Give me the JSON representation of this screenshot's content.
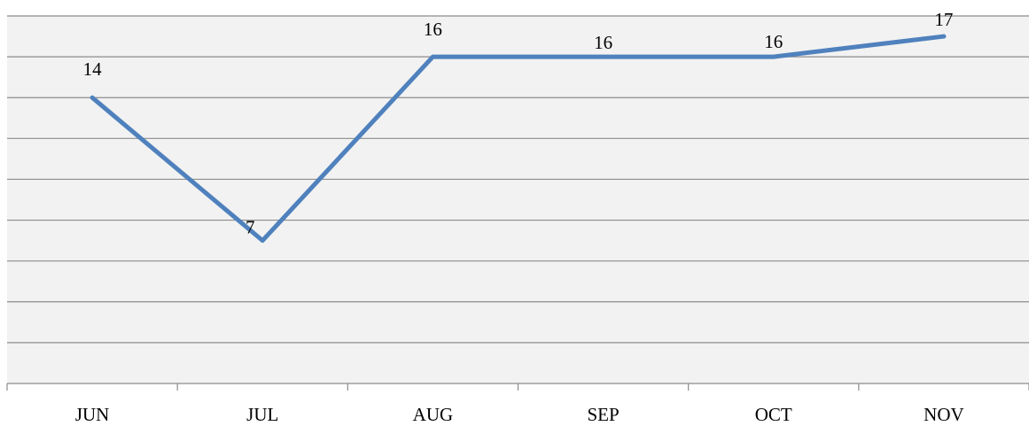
{
  "chart_data": {
    "type": "line",
    "categories": [
      "JUN",
      "JUL",
      "AUG",
      "SEP",
      "OCT",
      "NOV"
    ],
    "series": [
      {
        "values": [
          14,
          7,
          16,
          16,
          16,
          17
        ]
      }
    ],
    "data_labels": [
      "14",
      "7",
      "16",
      "16",
      "16",
      "17"
    ],
    "ylim": [
      0,
      18
    ],
    "y_major_unit": 2,
    "grid": true,
    "legend": "none",
    "colors": {
      "line": "#4f81bd",
      "plot_background": "#f2f2f2",
      "grid": "#8c8c8c"
    }
  }
}
